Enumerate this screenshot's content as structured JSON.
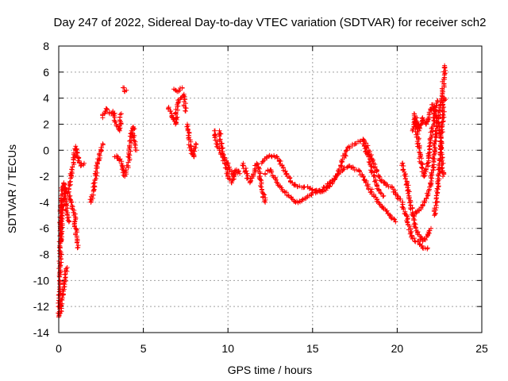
{
  "chart_data": {
    "type": "scatter",
    "title": "Day 247 of 2022, Sidereal Day-to-day VTEC variation (SDTVAR) for receiver sch2",
    "xlabel": "GPS time / hours",
    "ylabel": "SDTVAR / TECUs",
    "xlim": [
      0,
      25
    ],
    "ylim": [
      -14,
      8
    ],
    "xticks": [
      0,
      5,
      10,
      15,
      20,
      25
    ],
    "yticks": [
      -14,
      -12,
      -10,
      -8,
      -6,
      -4,
      -2,
      0,
      2,
      4,
      6,
      8
    ],
    "grid": true,
    "marker": "+",
    "series": [
      {
        "name": "SDTVAR",
        "color": "#ff0000",
        "segments": [
          [
            [
              0.0,
              -12.8
            ],
            [
              0.05,
              -10.5
            ],
            [
              0.1,
              -8.2
            ],
            [
              0.1,
              -6.0
            ],
            [
              0.15,
              -4.0
            ],
            [
              0.2,
              -3.0
            ],
            [
              0.3,
              -2.5
            ],
            [
              0.4,
              -3.5
            ],
            [
              0.5,
              -4.8
            ],
            [
              0.6,
              -5.5
            ]
          ],
          [
            [
              0.1,
              -12.5
            ],
            [
              0.2,
              -11.5
            ],
            [
              0.3,
              -10.5
            ],
            [
              0.4,
              -9.5
            ],
            [
              0.5,
              -9.0
            ]
          ],
          [
            [
              0.1,
              -7.0
            ],
            [
              0.2,
              -5.0
            ],
            [
              0.3,
              -3.8
            ],
            [
              0.5,
              -3.0
            ],
            [
              0.7,
              -3.8
            ],
            [
              0.9,
              -4.8
            ],
            [
              1.0,
              -6.0
            ],
            [
              1.1,
              -7.5
            ]
          ],
          [
            [
              0.6,
              -3.0
            ],
            [
              0.8,
              -1.5
            ],
            [
              1.0,
              0.3
            ],
            [
              1.1,
              -0.5
            ],
            [
              1.3,
              -1.2
            ],
            [
              1.5,
              -1.0
            ]
          ],
          [
            [
              1.9,
              -4.0
            ],
            [
              2.1,
              -2.5
            ],
            [
              2.3,
              -1.0
            ],
            [
              2.5,
              0.2
            ],
            [
              2.6,
              0.5
            ]
          ],
          [
            [
              2.6,
              2.5
            ],
            [
              2.8,
              3.2
            ],
            [
              3.0,
              2.8
            ],
            [
              3.2,
              3.0
            ],
            [
              3.4,
              2.0
            ],
            [
              3.6,
              1.5
            ],
            [
              3.7,
              2.8
            ]
          ],
          [
            [
              3.8,
              4.8
            ],
            [
              3.9,
              4.5
            ],
            [
              4.0,
              4.6
            ]
          ],
          [
            [
              3.3,
              -0.5
            ],
            [
              3.5,
              -0.5
            ],
            [
              3.7,
              -1.0
            ],
            [
              3.9,
              -2.0
            ],
            [
              4.1,
              -1.2
            ],
            [
              4.2,
              0.2
            ],
            [
              4.3,
              1.5
            ],
            [
              4.4,
              1.8
            ],
            [
              4.5,
              0.5
            ],
            [
              4.6,
              0.0
            ]
          ],
          [
            [
              6.5,
              3.3
            ],
            [
              6.7,
              2.5
            ],
            [
              6.9,
              2.0
            ],
            [
              7.0,
              3.5
            ],
            [
              7.2,
              4.0
            ],
            [
              7.4,
              4.3
            ],
            [
              7.5,
              3.0
            ]
          ],
          [
            [
              6.8,
              4.7
            ],
            [
              7.0,
              4.5
            ],
            [
              7.3,
              4.8
            ]
          ],
          [
            [
              7.6,
              2.0
            ],
            [
              7.7,
              1.0
            ],
            [
              7.8,
              0.0
            ],
            [
              8.0,
              -0.5
            ],
            [
              8.1,
              0.5
            ]
          ],
          [
            [
              9.2,
              1.5
            ],
            [
              9.3,
              0.5
            ],
            [
              9.5,
              0.0
            ],
            [
              9.7,
              -0.5
            ],
            [
              9.9,
              -0.8
            ],
            [
              10.1,
              -1.5
            ],
            [
              10.3,
              -2.0
            ],
            [
              10.5,
              -1.5
            ],
            [
              10.7,
              -1.8
            ]
          ],
          [
            [
              9.5,
              1.5
            ],
            [
              9.6,
              0.5
            ],
            [
              9.8,
              -1.0
            ],
            [
              10.0,
              -2.0
            ],
            [
              10.2,
              -2.5
            ],
            [
              10.4,
              -1.8
            ]
          ],
          [
            [
              10.9,
              -1.0
            ],
            [
              11.1,
              -1.8
            ],
            [
              11.3,
              -2.5
            ],
            [
              11.5,
              -2.0
            ],
            [
              11.7,
              -1.0
            ],
            [
              11.9,
              -2.0
            ],
            [
              12.0,
              -3.0
            ],
            [
              12.2,
              -4.0
            ]
          ],
          [
            [
              12.0,
              -1.0
            ],
            [
              12.3,
              -0.5
            ],
            [
              12.6,
              -0.5
            ],
            [
              12.9,
              -0.5
            ],
            [
              13.2,
              -1.2
            ],
            [
              13.5,
              -2.0
            ],
            [
              13.8,
              -2.5
            ],
            [
              14.1,
              -2.8
            ],
            [
              14.5,
              -2.8
            ],
            [
              15.0,
              -3.0
            ],
            [
              15.5,
              -3.2
            ],
            [
              16.0,
              -2.8
            ],
            [
              16.5,
              -1.8
            ],
            [
              17.0,
              0.0
            ],
            [
              17.5,
              0.5
            ],
            [
              18.0,
              0.8
            ],
            [
              18.3,
              0.0
            ],
            [
              18.6,
              -1.0
            ],
            [
              18.9,
              -2.0
            ],
            [
              19.2,
              -2.5
            ],
            [
              19.6,
              -2.8
            ],
            [
              20.0,
              -3.5
            ],
            [
              20.3,
              -4.0
            ],
            [
              20.6,
              -5.5
            ],
            [
              20.9,
              -6.8
            ],
            [
              21.2,
              -7.0
            ],
            [
              21.5,
              -7.5
            ],
            [
              21.8,
              -7.5
            ]
          ],
          [
            [
              12.2,
              -1.8
            ],
            [
              12.5,
              -1.5
            ],
            [
              12.8,
              -2.2
            ],
            [
              13.2,
              -3.0
            ],
            [
              13.6,
              -3.5
            ],
            [
              14.0,
              -4.0
            ],
            [
              14.4,
              -3.8
            ],
            [
              14.8,
              -3.5
            ],
            [
              15.2,
              -3.2
            ],
            [
              15.6,
              -3.0
            ],
            [
              16.0,
              -2.5
            ],
            [
              16.4,
              -2.0
            ],
            [
              16.8,
              -1.5
            ],
            [
              17.2,
              -1.2
            ],
            [
              17.6,
              -1.5
            ],
            [
              18.0,
              -2.0
            ],
            [
              18.4,
              -3.0
            ],
            [
              18.8,
              -3.8
            ],
            [
              19.2,
              -4.5
            ],
            [
              19.6,
              -5.0
            ],
            [
              19.9,
              -5.5
            ]
          ],
          [
            [
              18.0,
              0.5
            ],
            [
              18.3,
              -0.5
            ],
            [
              18.6,
              -2.0
            ],
            [
              18.9,
              -3.0
            ],
            [
              19.2,
              -3.5
            ]
          ],
          [
            [
              20.3,
              -1.0
            ],
            [
              20.5,
              -2.0
            ],
            [
              20.7,
              -3.5
            ],
            [
              20.9,
              -4.8
            ],
            [
              21.1,
              -6.0
            ],
            [
              21.3,
              -6.5
            ],
            [
              21.5,
              -7.0
            ],
            [
              21.8,
              -6.5
            ],
            [
              22.0,
              -6.0
            ]
          ],
          [
            [
              20.9,
              1.5
            ],
            [
              21.1,
              2.5
            ],
            [
              21.3,
              1.5
            ],
            [
              21.5,
              2.5
            ],
            [
              21.7,
              2.0
            ],
            [
              21.9,
              2.8
            ],
            [
              22.1,
              3.5
            ],
            [
              22.3,
              2.5
            ],
            [
              22.5,
              1.5
            ],
            [
              22.6,
              0.5
            ],
            [
              22.7,
              -2.0
            ]
          ],
          [
            [
              21.0,
              -5.0
            ],
            [
              21.3,
              -4.5
            ],
            [
              21.6,
              -4.0
            ],
            [
              21.9,
              -3.0
            ],
            [
              22.1,
              -1.5
            ],
            [
              22.3,
              1.5
            ],
            [
              22.5,
              3.0
            ],
            [
              22.7,
              4.5
            ],
            [
              22.8,
              6.5
            ]
          ],
          [
            [
              21.0,
              2.8
            ],
            [
              21.2,
              1.0
            ],
            [
              21.4,
              -1.0
            ],
            [
              21.6,
              -2.0
            ],
            [
              21.8,
              -1.0
            ],
            [
              22.0,
              1.0
            ],
            [
              22.2,
              2.5
            ],
            [
              22.4,
              3.8
            ]
          ],
          [
            [
              22.2,
              -5.0
            ],
            [
              22.4,
              -3.0
            ],
            [
              22.5,
              -1.0
            ],
            [
              22.6,
              1.0
            ],
            [
              22.7,
              2.5
            ],
            [
              22.8,
              4.0
            ]
          ]
        ]
      }
    ]
  }
}
